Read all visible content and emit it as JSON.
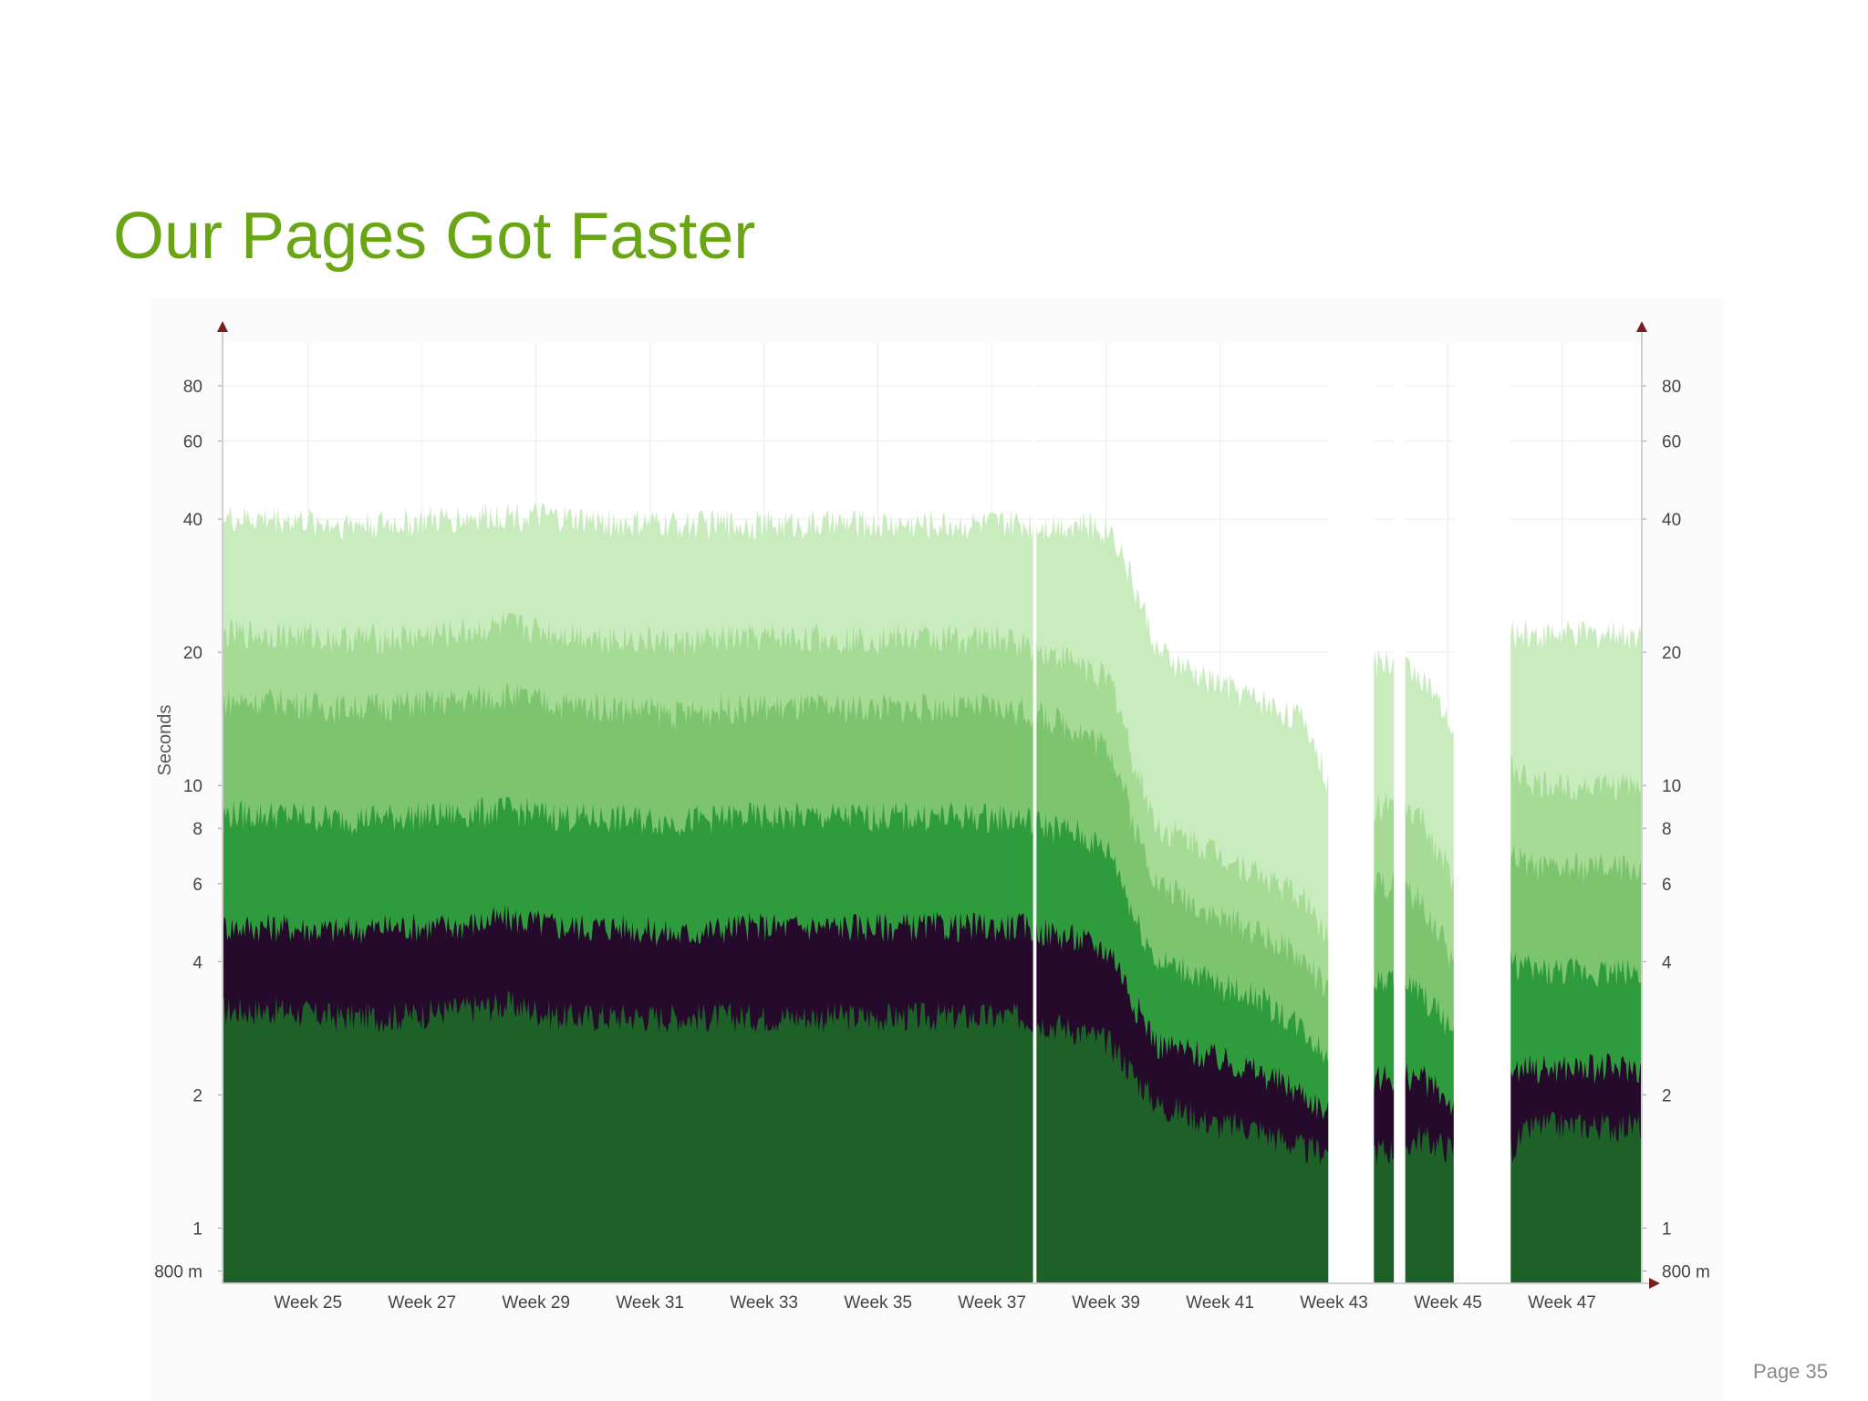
{
  "slide": {
    "title": "Our Pages Got Faster",
    "page_label": "Page 35",
    "title_color": "#6aa516"
  },
  "chart_data": {
    "type": "area",
    "ylabel": "Seconds",
    "yscale": "log",
    "ylim": [
      0.75,
      100
    ],
    "y_ticks": [
      {
        "value": 0.8,
        "label": "800 m"
      },
      {
        "value": 1,
        "label": "1"
      },
      {
        "value": 2,
        "label": "2"
      },
      {
        "value": 4,
        "label": "4"
      },
      {
        "value": 6,
        "label": "6"
      },
      {
        "value": 8,
        "label": "8"
      },
      {
        "value": 10,
        "label": "10"
      },
      {
        "value": 20,
        "label": "20"
      },
      {
        "value": 40,
        "label": "40"
      },
      {
        "value": 60,
        "label": "60"
      },
      {
        "value": 80,
        "label": "80"
      }
    ],
    "xlim": [
      24,
      48.9
    ],
    "x_ticks": [
      {
        "week": 25,
        "label": "Week 25"
      },
      {
        "week": 27,
        "label": "Week 27"
      },
      {
        "week": 29,
        "label": "Week 29"
      },
      {
        "week": 31,
        "label": "Week 31"
      },
      {
        "week": 33,
        "label": "Week 33"
      },
      {
        "week": 35,
        "label": "Week 35"
      },
      {
        "week": 37,
        "label": "Week 37"
      },
      {
        "week": 39,
        "label": "Week 39"
      },
      {
        "week": 41,
        "label": "Week 41"
      },
      {
        "week": 43,
        "label": "Week 43"
      },
      {
        "week": 45,
        "label": "Week 45"
      },
      {
        "week": 47,
        "label": "Week 47"
      }
    ],
    "dual_y_axis": true,
    "grid": true,
    "x": [
      24.0,
      25.0,
      26.0,
      27.0,
      28.0,
      29.0,
      30.0,
      31.0,
      32.0,
      33.0,
      34.0,
      35.0,
      36.0,
      37.0,
      37.5,
      38.0,
      39.0,
      39.6,
      40.0,
      40.4,
      41.0,
      41.5,
      42.0,
      43.0,
      43.4,
      44.2,
      44.6,
      45.0,
      45.6,
      46.6,
      47.0,
      48.0,
      48.9
    ],
    "gaps": [
      [
        43.4,
        44.2
      ],
      [
        44.55,
        44.75
      ],
      [
        45.6,
        46.6
      ],
      [
        38.22,
        38.28
      ]
    ],
    "series": [
      {
        "color": "#1e6128",
        "values": [
          3.1,
          3.1,
          3.0,
          3.0,
          3.1,
          3.2,
          3.0,
          3.0,
          3.0,
          3.0,
          3.0,
          3.0,
          3.0,
          3.0,
          3.0,
          3.0,
          2.8,
          2.6,
          2.2,
          1.9,
          1.8,
          1.7,
          1.7,
          1.5,
          1.5,
          1.5,
          1.5,
          1.6,
          1.5,
          1.5,
          1.7,
          1.7,
          1.7
        ]
      },
      {
        "color": "#260a2c",
        "values": [
          4.8,
          4.8,
          4.7,
          4.8,
          4.8,
          5.0,
          4.8,
          4.8,
          4.6,
          4.8,
          4.8,
          4.8,
          4.8,
          4.8,
          4.8,
          4.8,
          4.5,
          4.2,
          3.2,
          2.6,
          2.5,
          2.4,
          2.3,
          2.0,
          1.8,
          2.2,
          2.2,
          2.2,
          1.9,
          2.3,
          2.3,
          2.3,
          2.3
        ]
      },
      {
        "color": "#2e9c3c",
        "values": [
          8.6,
          8.6,
          8.4,
          8.5,
          8.6,
          8.8,
          8.5,
          8.4,
          8.3,
          8.5,
          8.5,
          8.5,
          8.5,
          8.5,
          8.5,
          8.4,
          7.8,
          7.0,
          5.0,
          4.0,
          3.8,
          3.5,
          3.4,
          2.8,
          2.4,
          3.6,
          3.6,
          3.4,
          2.8,
          4.0,
          3.8,
          3.8,
          3.8
        ]
      },
      {
        "color": "#7dc46f",
        "values": [
          15.5,
          15.5,
          15.0,
          15.2,
          15.5,
          16.0,
          15.2,
          15.0,
          14.5,
          15.0,
          15.0,
          15.0,
          15.0,
          15.0,
          15.0,
          14.8,
          13.5,
          12.0,
          8.0,
          6.0,
          5.5,
          5.0,
          4.8,
          4.0,
          3.4,
          6.0,
          6.0,
          5.5,
          4.0,
          7.0,
          6.5,
          6.5,
          6.5
        ]
      },
      {
        "color": "#a5db94",
        "values": [
          22.0,
          22.0,
          21.5,
          21.5,
          22.0,
          23.0,
          22.0,
          21.5,
          21.0,
          21.5,
          21.5,
          21.5,
          21.5,
          21.5,
          21.5,
          21.0,
          19.0,
          17.0,
          11.0,
          8.0,
          7.5,
          7.0,
          6.5,
          5.5,
          4.5,
          9.0,
          9.0,
          8.5,
          6.0,
          11.0,
          10.0,
          10.0,
          10.0
        ]
      },
      {
        "color": "#c9ecbe",
        "values": [
          40.0,
          40.0,
          39.0,
          39.0,
          40.0,
          41.0,
          40.0,
          39.0,
          39.0,
          39.0,
          39.0,
          39.0,
          39.0,
          39.0,
          39.0,
          39.0,
          39.0,
          38.0,
          28.0,
          20.0,
          18.0,
          17.0,
          16.0,
          14.0,
          10.0,
          19.0,
          19.0,
          18.0,
          13.0,
          22.0,
          22.0,
          22.0,
          22.0
        ]
      }
    ]
  }
}
